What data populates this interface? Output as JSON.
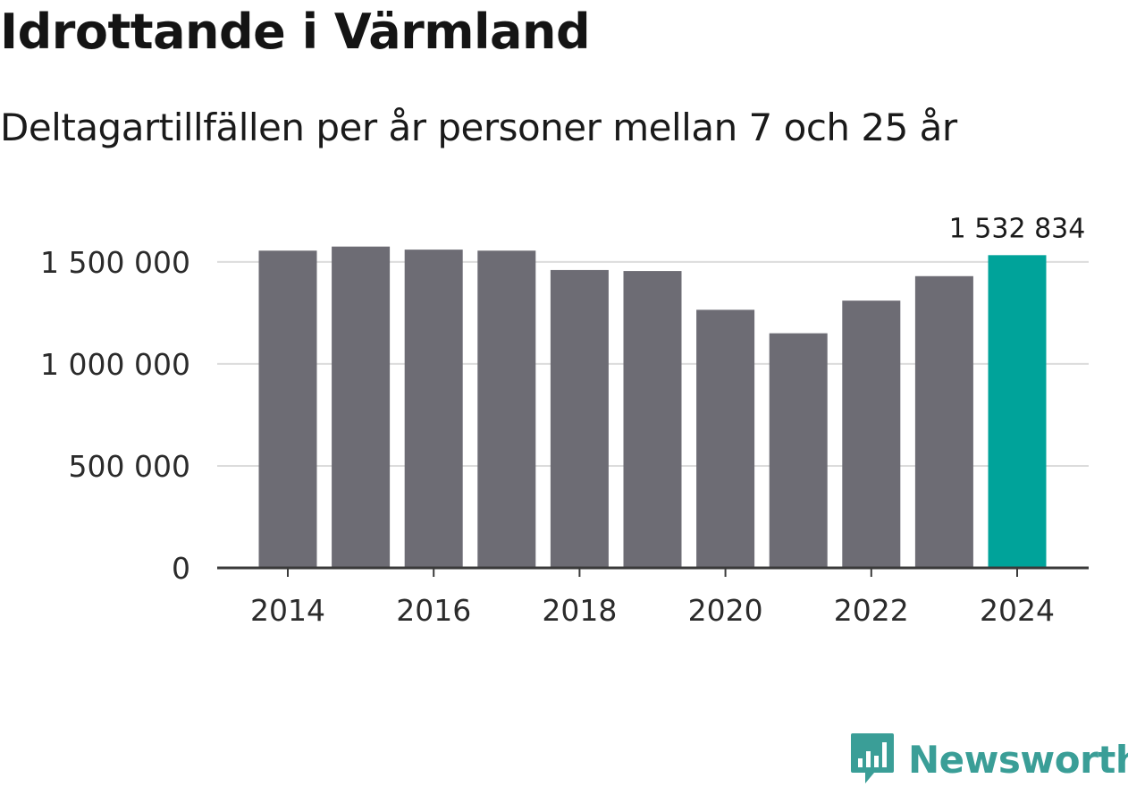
{
  "title": "Idrottande i Värmland",
  "subtitle": "Deltagartillfällen per år personer mellan 7 och 25 år",
  "brand": {
    "name": "Newsworthy",
    "color": "#3a9e97",
    "icon": "newsworthy-logo-icon"
  },
  "colors": {
    "bar": "#6d6c74",
    "highlight": "#00a39a",
    "grid": "#dcdcdc",
    "axis": "#3a3a3a"
  },
  "chart_data": {
    "type": "bar",
    "title": "Idrottande i Värmland",
    "subtitle": "Deltagartillfällen per år personer mellan 7 och 25 år",
    "xlabel": "",
    "ylabel": "",
    "categories": [
      "2014",
      "2015",
      "2016",
      "2017",
      "2018",
      "2019",
      "2020",
      "2021",
      "2022",
      "2023",
      "2024"
    ],
    "values": [
      1555000,
      1575000,
      1560000,
      1555000,
      1460000,
      1455000,
      1265000,
      1150000,
      1310000,
      1430000,
      1532834
    ],
    "highlight_index": 10,
    "highlight_label": "1 532 834",
    "ylim": [
      0,
      1600000
    ],
    "y_ticks": [
      0,
      500000,
      1000000,
      1500000
    ],
    "y_tick_labels": [
      "0",
      "500 000",
      "1 000 000",
      "1 500 000"
    ],
    "x_tick_labels": [
      "2014",
      "2016",
      "2018",
      "2020",
      "2022",
      "2024"
    ],
    "grid": true,
    "legend": "none"
  }
}
